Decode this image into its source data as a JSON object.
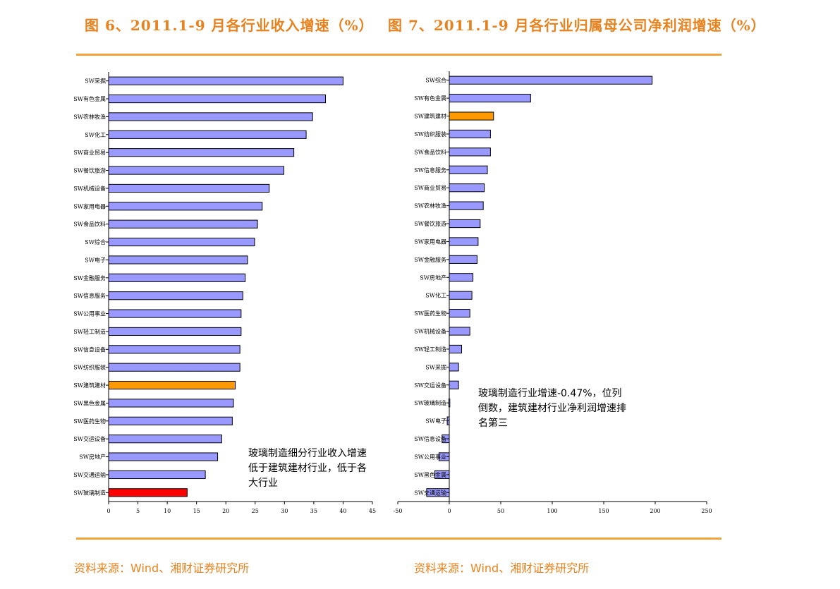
{
  "titles": {
    "left": "图 6、2011.1-9 月各行业收入增速（%）",
    "right": "图 7、2011.1-9 月各行业归属母公司净利润增速（%）"
  },
  "sources": {
    "left": "资料来源：Wind、湘财证券研究所",
    "right": "资料来源：Wind、湘财证券研究所"
  },
  "colors": {
    "accent": "#e8821e",
    "rule": "#f2a33a",
    "bar_default": "#9999ff",
    "bar_building": "#ff9900",
    "bar_glass": "#ff0000"
  },
  "chart_data": [
    {
      "type": "bar",
      "orientation": "horizontal",
      "title": "图 6、2011.1-9 月各行业收入增速（%）",
      "xlim": [
        0,
        45
      ],
      "x_ticks": [
        0,
        5,
        10,
        15,
        20,
        25,
        30,
        35,
        40,
        45
      ],
      "categories": [
        "SW采掘",
        "SW有色金属",
        "SW农林牧渔",
        "SW化工",
        "SW商业贸易",
        "SW餐饮旅游",
        "SW机械设备",
        "SW家用电器",
        "SW食品饮料",
        "SW综合",
        "SW电子",
        "SW金融服务",
        "SW信息服务",
        "SW公用事业",
        "SW轻工制造",
        "SW信息设备",
        "SW纺织服装",
        "SW建筑建材",
        "SW黑色金属",
        "SW医药生物",
        "SW交运设备",
        "SW房地产",
        "SW交通运输",
        "SW玻璃制造"
      ],
      "values": [
        40.0,
        37.0,
        34.8,
        33.7,
        31.6,
        29.9,
        27.4,
        26.2,
        25.4,
        24.9,
        23.7,
        23.3,
        22.9,
        22.6,
        22.6,
        22.4,
        22.4,
        21.6,
        21.3,
        21.1,
        19.3,
        18.6,
        16.5,
        13.4
      ],
      "highlight": {
        "SW建筑建材": "#ff9900",
        "SW玻璃制造": "#ff0000"
      },
      "annotation": "玻璃制造细分行业收入增速低于建筑建材行业，低于各大行业"
    },
    {
      "type": "bar",
      "orientation": "horizontal",
      "title": "图 7、2011.1-9 月各行业归属母公司净利润增速（%）",
      "xlim": [
        -50,
        250
      ],
      "x_ticks": [
        -50,
        0,
        50,
        100,
        150,
        200,
        250
      ],
      "categories": [
        "SW综合",
        "SW有色金属",
        "SW建筑建材",
        "SW纺织服装",
        "SW食品饮料",
        "SW信息服务",
        "SW商业贸易",
        "SW农林牧渔",
        "SW餐饮旅游",
        "SW家用电器",
        "SW金融服务",
        "SW房地产",
        "SW化工",
        "SW医药生物",
        "SW机械设备",
        "SW轻工制造",
        "SW采掘",
        "SW交运设备",
        "SW玻璃制造",
        "SW电子",
        "SW信息设备",
        "SW公用事业",
        "SW黑色金属",
        "SW交通运输"
      ],
      "values": [
        197,
        79,
        43,
        40,
        40,
        37,
        34,
        33,
        30,
        28,
        27,
        23,
        22,
        20,
        20,
        12,
        9,
        9,
        -0.47,
        -2,
        -7,
        -10,
        -14,
        -22
      ],
      "highlight": {
        "SW建筑建材": "#ff9900"
      },
      "annotation": "玻璃制造行业增速-0.47%，位列倒数，建筑建材行业净利润增速排名第三"
    }
  ]
}
